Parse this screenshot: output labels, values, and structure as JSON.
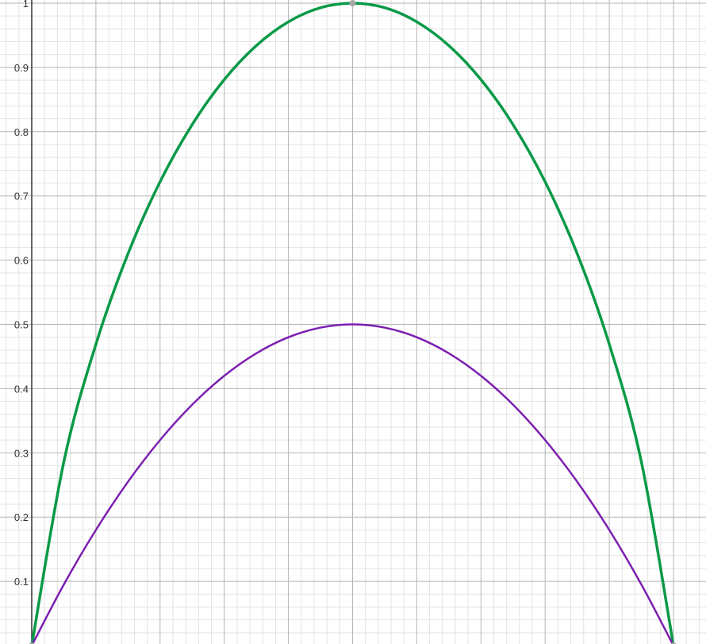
{
  "chart_data": {
    "type": "line",
    "title": "",
    "xlabel": "",
    "ylabel": "",
    "xlim": [
      0,
      1
    ],
    "ylim": [
      0,
      1
    ],
    "grid": true,
    "y_ticks": [
      {
        "value": 0.1,
        "label": "0.1"
      },
      {
        "value": 0.2,
        "label": "0.2"
      },
      {
        "value": 0.3,
        "label": "0.3"
      },
      {
        "value": 0.4,
        "label": "0.4"
      },
      {
        "value": 0.5,
        "label": "0.5"
      },
      {
        "value": 0.6,
        "label": "0.6"
      },
      {
        "value": 0.7,
        "label": "0.7"
      },
      {
        "value": 0.8,
        "label": "0.8"
      },
      {
        "value": 0.9,
        "label": "0.9"
      },
      {
        "value": 1.0,
        "label": "1"
      }
    ],
    "series": [
      {
        "color": "#0a9a47",
        "x": [
          0,
          0.05,
          0.1,
          0.15,
          0.2,
          0.25,
          0.3,
          0.35,
          0.4,
          0.45,
          0.5,
          0.55,
          0.6,
          0.65,
          0.7,
          0.75,
          0.8,
          0.85,
          0.9,
          0.95,
          1
        ],
        "y": [
          0,
          0.286,
          0.469,
          0.61,
          0.722,
          0.811,
          0.881,
          0.934,
          0.971,
          0.993,
          1.0,
          0.993,
          0.971,
          0.934,
          0.881,
          0.811,
          0.722,
          0.61,
          0.469,
          0.286,
          0
        ]
      },
      {
        "color": "#7c1fb0",
        "x": [
          0,
          0.05,
          0.1,
          0.15,
          0.2,
          0.25,
          0.3,
          0.35,
          0.4,
          0.45,
          0.5,
          0.55,
          0.6,
          0.65,
          0.7,
          0.75,
          0.8,
          0.85,
          0.9,
          0.95,
          1
        ],
        "y": [
          0,
          0.095,
          0.18,
          0.255,
          0.32,
          0.375,
          0.42,
          0.455,
          0.48,
          0.495,
          0.5,
          0.495,
          0.48,
          0.455,
          0.42,
          0.375,
          0.32,
          0.255,
          0.18,
          0.095,
          0
        ]
      }
    ],
    "points": [
      {
        "x": 0.5,
        "y": 1.0,
        "color": "#a8a8a8"
      },
      {
        "x": 0,
        "y": 0,
        "color": "#a8a8a8"
      },
      {
        "x": 1,
        "y": 0,
        "color": "#a8a8a8"
      }
    ]
  }
}
